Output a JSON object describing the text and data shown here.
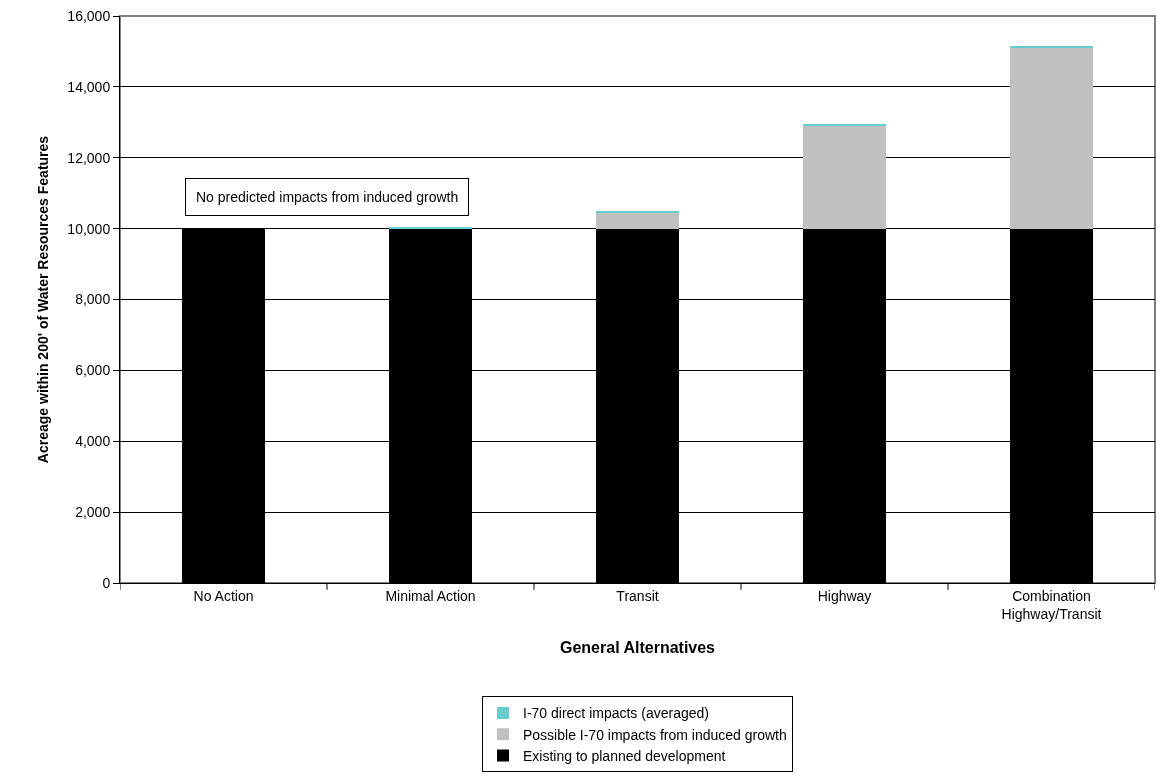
{
  "chart_data": {
    "type": "bar",
    "stacked": true,
    "xlabel": "General Alternatives",
    "ylabel": "Acreage within 200' of Water Resources Features",
    "categories": [
      "No Action",
      "Minimal Action",
      "Transit",
      "Highway",
      "Combination Highway/Transit"
    ],
    "series": [
      {
        "name": "Existing to planned development",
        "color": "#000000",
        "values": [
          10000,
          10000,
          10000,
          10000,
          10000
        ]
      },
      {
        "name": "Possible I-70 impacts from induced growth",
        "color": "#c0c0c0",
        "values": [
          0,
          0,
          450,
          2900,
          5100
        ]
      },
      {
        "name": "I-70 direct impacts (averaged)",
        "color": "#66cccc",
        "values": [
          0,
          20,
          30,
          30,
          30
        ]
      }
    ],
    "ylim": [
      0,
      16000
    ],
    "yticks": [
      {
        "value": 0,
        "label": "0"
      },
      {
        "value": 2000,
        "label": "2,000"
      },
      {
        "value": 4000,
        "label": "4,000"
      },
      {
        "value": 6000,
        "label": "6,000"
      },
      {
        "value": 8000,
        "label": "8,000"
      },
      {
        "value": 10000,
        "label": "10,000"
      },
      {
        "value": 12000,
        "label": "12,000"
      },
      {
        "value": 14000,
        "label": "14,000"
      },
      {
        "value": 16000,
        "label": "16,000"
      }
    ],
    "grid": "y",
    "legend": "bottom",
    "annotations": [
      "No predicted impacts from induced growth"
    ]
  }
}
